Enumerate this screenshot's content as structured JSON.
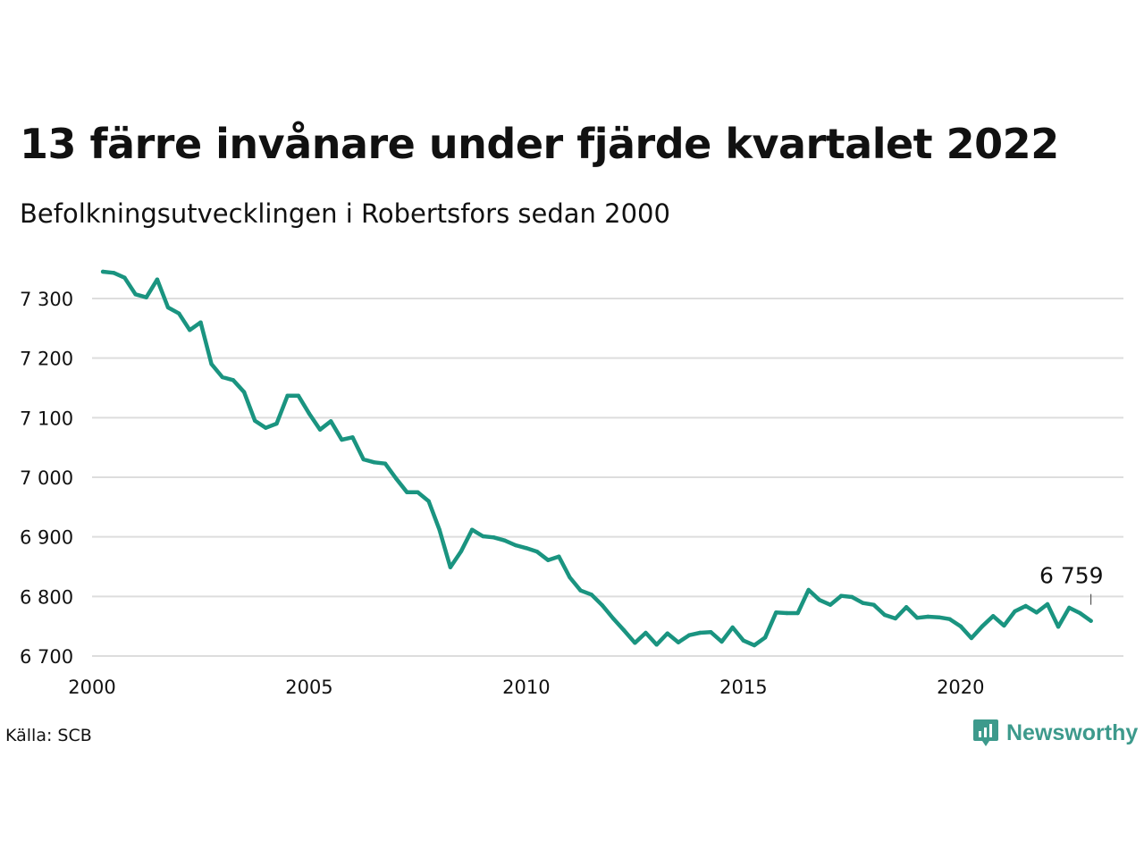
{
  "header": {
    "title": "13 färre invånare under fjärde kvartalet 2022",
    "subtitle": "Befolkningsutvecklingen i Robertsfors sedan 2000"
  },
  "footer": {
    "source": "Källa: SCB",
    "logo_text": "Newsworthy",
    "logo_icon": "bar-chart-speech-bubble-icon"
  },
  "colors": {
    "line": "#1a9480",
    "grid": "#dddddd",
    "brand": "#3d9a8c"
  },
  "chart_data": {
    "type": "line",
    "title": "13 färre invånare under fjärde kvartalet 2022",
    "subtitle": "Befolkningsutvecklingen i Robertsfors sedan 2000",
    "xlabel": "",
    "ylabel": "",
    "xlim": [
      2000,
      2023.75
    ],
    "ylim": [
      6690,
      7350
    ],
    "x_ticks": [
      2000,
      2005,
      2010,
      2015,
      2020
    ],
    "x_tick_labels": [
      "2000",
      "2005",
      "2010",
      "2015",
      "2020"
    ],
    "y_ticks": [
      6700,
      6800,
      6900,
      7000,
      7100,
      7200,
      7300
    ],
    "y_tick_labels": [
      "6 700",
      "6 800",
      "6 900",
      "7 000",
      "7 100",
      "7 200",
      "7 300"
    ],
    "grid": true,
    "legend": "none",
    "end_label": "6 759",
    "series": [
      {
        "frequency": "quarterly",
        "x": [
          2000.25,
          2000.5,
          2000.75,
          2001,
          2001.25,
          2001.5,
          2001.75,
          2002,
          2002.25,
          2002.5,
          2002.75,
          2003,
          2003.25,
          2003.5,
          2003.75,
          2004,
          2004.25,
          2004.5,
          2004.75,
          2005,
          2005.25,
          2005.5,
          2005.75,
          2006,
          2006.25,
          2006.5,
          2006.75,
          2007,
          2007.25,
          2007.5,
          2007.75,
          2008,
          2008.25,
          2008.5,
          2008.75,
          2009,
          2009.25,
          2009.5,
          2009.75,
          2010,
          2010.25,
          2010.5,
          2010.75,
          2011,
          2011.25,
          2011.5,
          2011.75,
          2012,
          2012.25,
          2012.5,
          2012.75,
          2013,
          2013.25,
          2013.5,
          2013.75,
          2014,
          2014.25,
          2014.5,
          2014.75,
          2015,
          2015.25,
          2015.5,
          2015.75,
          2016,
          2016.25,
          2016.5,
          2016.75,
          2017,
          2017.25,
          2017.5,
          2017.75,
          2018,
          2018.25,
          2018.5,
          2018.75,
          2019,
          2019.25,
          2019.5,
          2019.75,
          2020,
          2020.25,
          2020.5,
          2020.75,
          2021,
          2021.25,
          2021.5,
          2021.75,
          2022,
          2022.25,
          2022.5,
          2022.75,
          2023
        ],
        "values": [
          7345,
          7343,
          7335,
          7307,
          7302,
          7332,
          7285,
          7275,
          7247,
          7260,
          7190,
          7168,
          7163,
          7143,
          7095,
          7083,
          7090,
          7137,
          7137,
          7107,
          7080,
          7094,
          7063,
          7067,
          7030,
          7025,
          7023,
          6998,
          6975,
          6975,
          6960,
          6912,
          6849,
          6876,
          6912,
          6901,
          6899,
          6894,
          6886,
          6881,
          6875,
          6861,
          6867,
          6832,
          6810,
          6803,
          6785,
          6763,
          6743,
          6722,
          6739,
          6719,
          6738,
          6723,
          6735,
          6739,
          6740,
          6724,
          6748,
          6726,
          6718,
          6731,
          6773,
          6772,
          6772,
          6811,
          6794,
          6786,
          6801,
          6799,
          6789,
          6786,
          6769,
          6763,
          6782,
          6764,
          6766,
          6765,
          6762,
          6750,
          6730,
          6750,
          6767,
          6751,
          6775,
          6784,
          6773,
          6787,
          6749,
          6781,
          6772,
          6759
        ]
      }
    ]
  }
}
